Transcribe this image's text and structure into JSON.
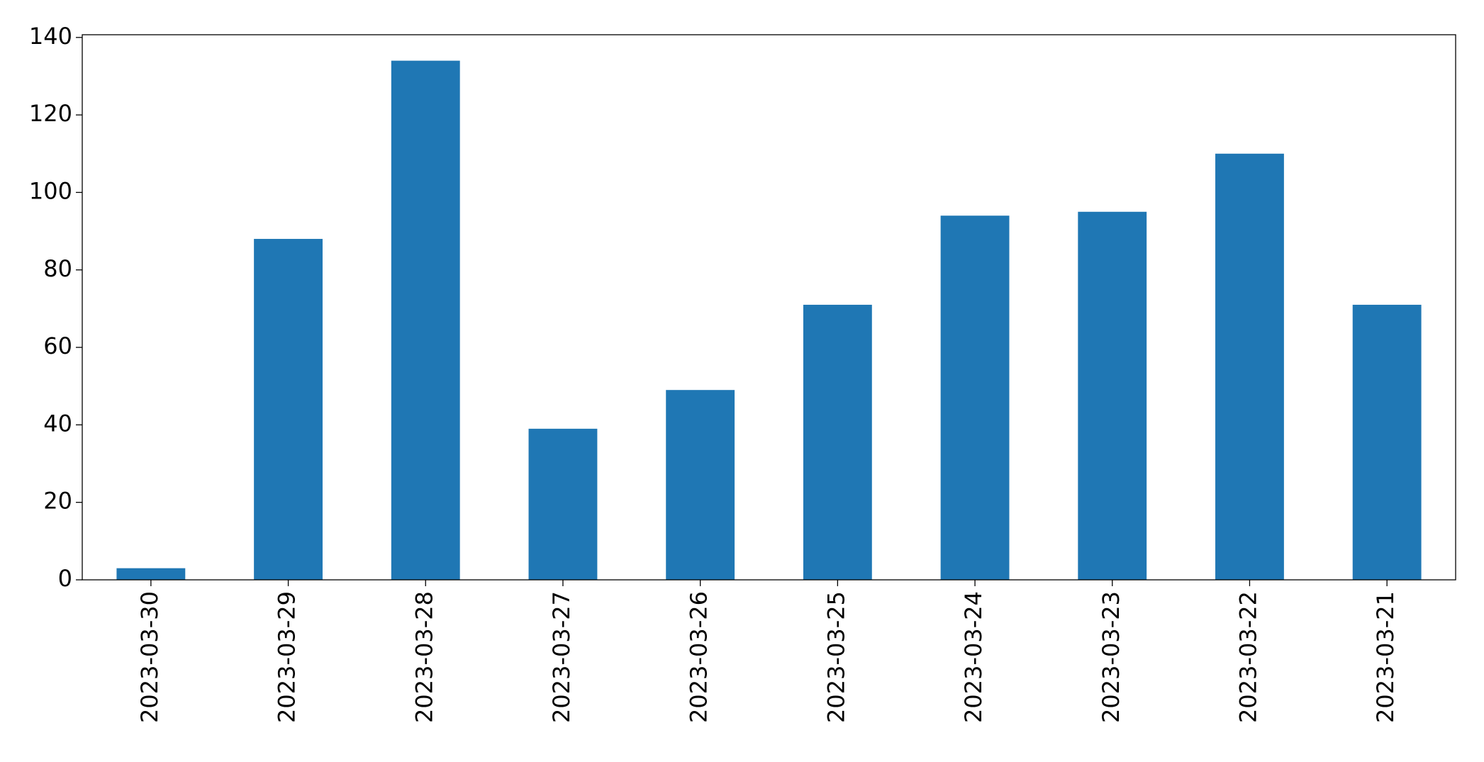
{
  "chart_data": {
    "type": "bar",
    "categories": [
      "2023-03-30",
      "2023-03-29",
      "2023-03-28",
      "2023-03-27",
      "2023-03-26",
      "2023-03-25",
      "2023-03-24",
      "2023-03-23",
      "2023-03-22",
      "2023-03-21"
    ],
    "values": [
      3,
      88,
      134,
      39,
      49,
      71,
      94,
      95,
      110,
      71
    ],
    "color": "#1f77b4",
    "ylim": [
      0,
      140.7
    ],
    "yticks": [
      0,
      20,
      40,
      60,
      80,
      100,
      120,
      140
    ],
    "grid": false
  }
}
